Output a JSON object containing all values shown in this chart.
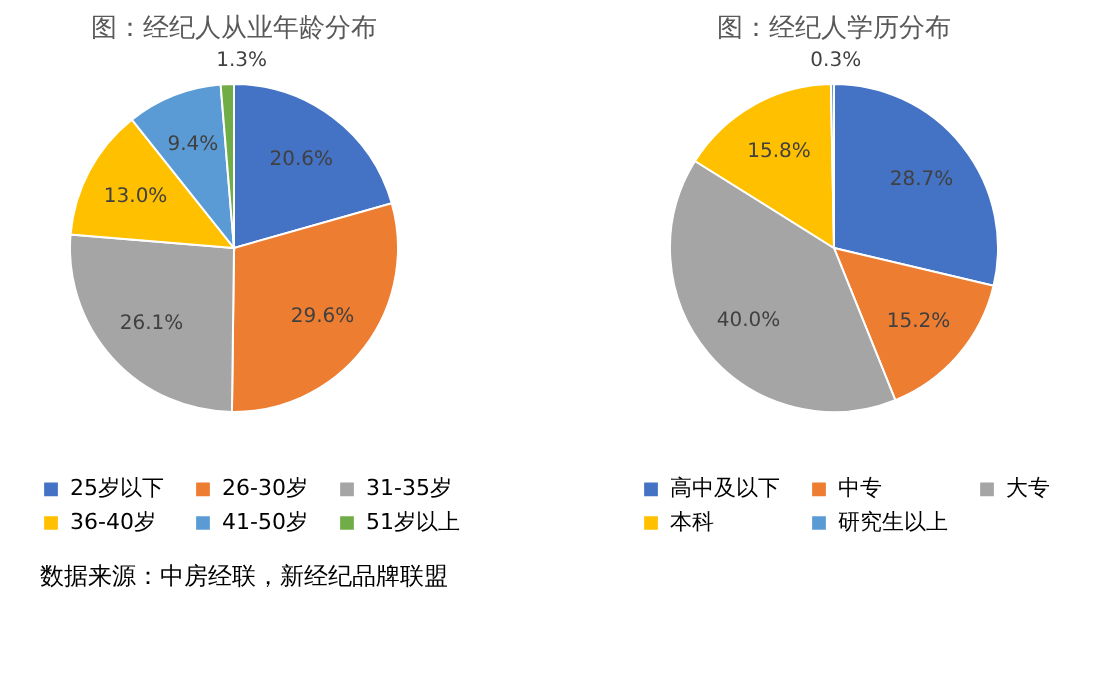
{
  "chart_data": [
    {
      "type": "pie",
      "title": "图：经纪人从业年龄分布",
      "categories": [
        "25岁以下",
        "26-30岁",
        "31-35岁",
        "36-40岁",
        "41-50岁",
        "51岁以上"
      ],
      "values": [
        20.6,
        29.6,
        26.1,
        13.0,
        9.4,
        1.3
      ],
      "value_labels": [
        "20.6%",
        "29.6%",
        "26.1%",
        "13.0%",
        "9.4%",
        "1.3%"
      ],
      "colors": [
        "#4472c4",
        "#ed7d31",
        "#a5a5a5",
        "#ffc000",
        "#5b9bd5",
        "#70ad47"
      ],
      "legend": "bottom",
      "annotations": [
        "数据来源：中房经联，新经纪品牌联盟"
      ]
    },
    {
      "type": "pie",
      "title": "图：经纪人学历分布",
      "categories": [
        "高中及以下",
        "中专",
        "大专",
        "本科",
        "研究生以上"
      ],
      "values": [
        28.7,
        15.2,
        40.0,
        15.8,
        0.3
      ],
      "value_labels": [
        "28.7%",
        "15.2%",
        "40.0%",
        "15.8%",
        "0.3%"
      ],
      "colors": [
        "#4472c4",
        "#ed7d31",
        "#a5a5a5",
        "#ffc000",
        "#5b9bd5"
      ],
      "legend": "bottom"
    }
  ]
}
